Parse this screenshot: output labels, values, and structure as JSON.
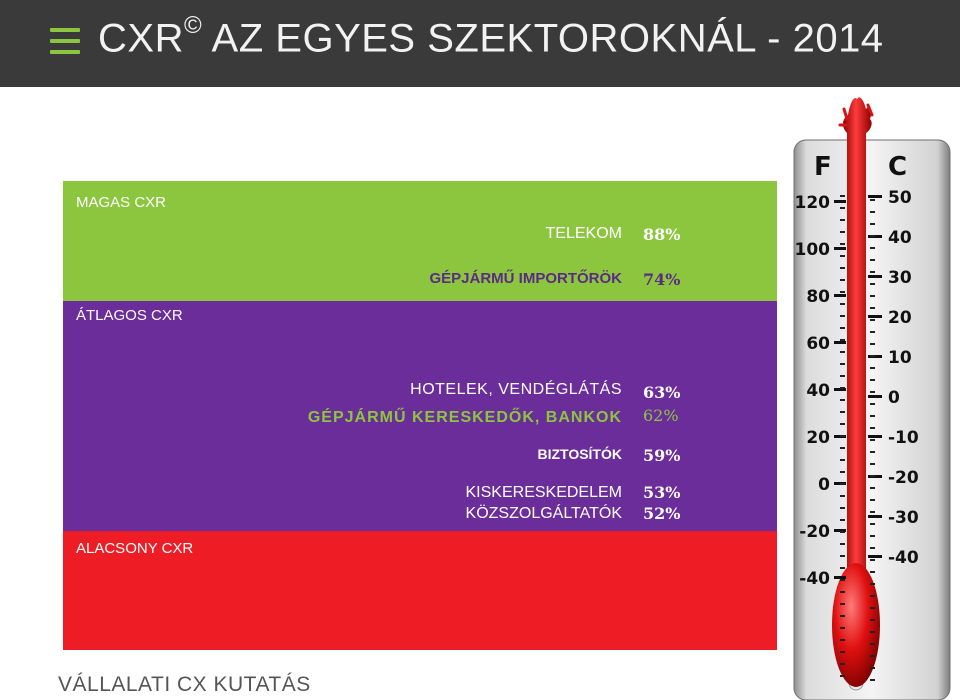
{
  "header": {
    "title_prefix": "CXR",
    "title_sup": "©",
    "title_rest": " AZ EGYES SZEKTOROKNÁL - 2014"
  },
  "levels": {
    "high": "MAGAS CXR",
    "mid": "ÁTLAGOS CXR",
    "low": "ALACSONY CXR"
  },
  "colors": {
    "high_band": "#8cc63f",
    "mid_band": "#6b2d99",
    "low_band": "#ee1c25",
    "header_bg": "#3a3a3a"
  },
  "chart_data": {
    "type": "table",
    "title": "CXR © AZ EGYES SZEKTOROKNÁL - 2014",
    "rows": [
      {
        "sector": "TELEKOM",
        "value_label": "88%",
        "value": 88
      },
      {
        "sector": "GÉPJÁRMŰ IMPORTŐRÖK",
        "value_label": "74%",
        "value": 74
      },
      {
        "sector": "HOTELEK, VENDÉGLÁTÁS",
        "value_label": "63%",
        "value": 63
      },
      {
        "sector": "GÉPJÁRMŰ KERESKEDŐK, BANKOK",
        "value_label": "62%",
        "value": 62
      },
      {
        "sector": "BIZTOSÍTÓK",
        "value_label": "59%",
        "value": 59
      },
      {
        "sector": "KISKERESKEDELEM",
        "value_label": "53%",
        "value": 53
      },
      {
        "sector": "KÖZSZOLGÁLTATÓK",
        "value_label": "52%",
        "value": 52
      }
    ],
    "bands": [
      "MAGAS CXR",
      "ÁTLAGOS CXR",
      "ALACSONY CXR"
    ]
  },
  "thermometer": {
    "f_label": "F",
    "c_label": "C",
    "f_ticks": [
      "120",
      "100",
      "80",
      "60",
      "40",
      "20",
      "0",
      "-20",
      "-40"
    ],
    "c_ticks": [
      "50",
      "40",
      "30",
      "20",
      "10",
      "0",
      "-10",
      "-20",
      "-30",
      "-40"
    ]
  },
  "footer": {
    "text": "VÁLLALATI CX KUTATÁS"
  }
}
